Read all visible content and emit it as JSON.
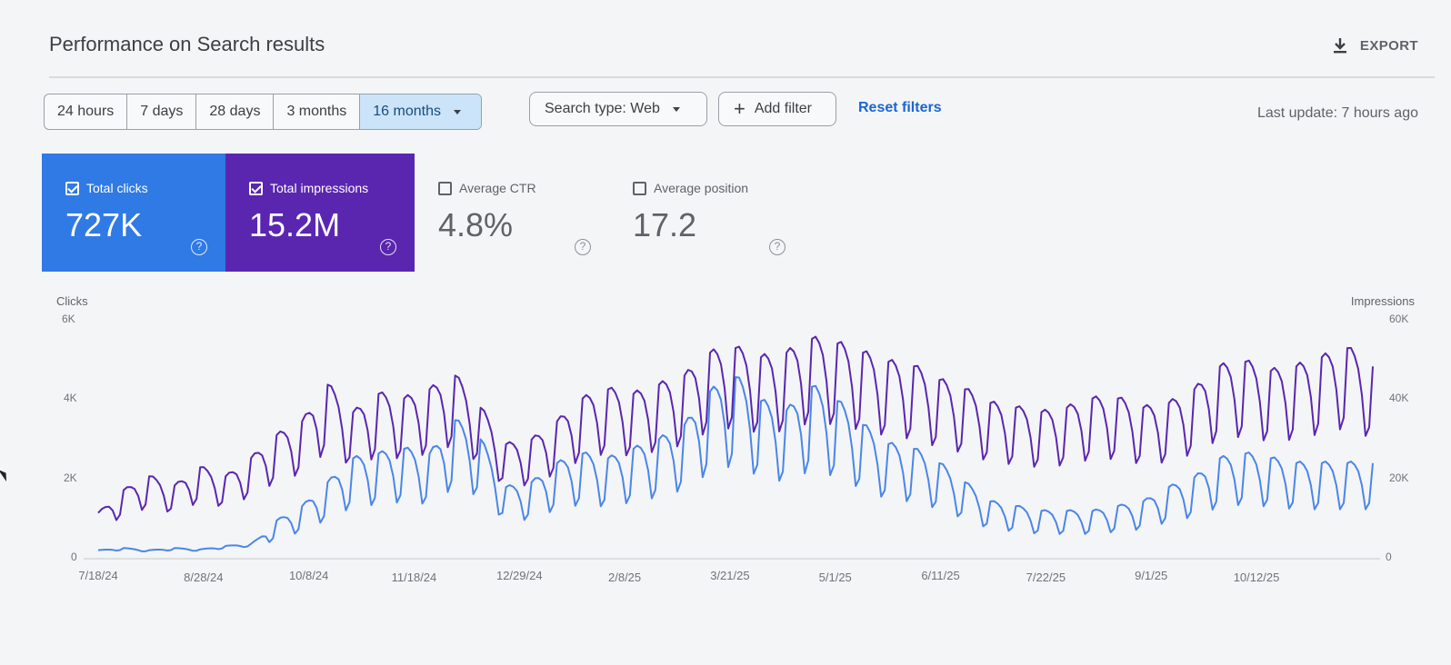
{
  "header": {
    "title": "Performance on Search results",
    "export_label": "EXPORT"
  },
  "date_range": {
    "options": [
      "24 hours",
      "7 days",
      "28 days",
      "3 months",
      "16 months"
    ],
    "selected": "16 months"
  },
  "filters": {
    "search_type": "Search type: Web",
    "add_filter": "Add filter",
    "reset": "Reset filters"
  },
  "last_update": "Last update: 7 hours ago",
  "metrics": {
    "clicks": {
      "label": "Total clicks",
      "value": "727K",
      "checked": true,
      "color": "#2f7ae5"
    },
    "impressions": {
      "label": "Total impressions",
      "value": "15.2M",
      "checked": true,
      "color": "#5a26b0"
    },
    "ctr": {
      "label": "Average CTR",
      "value": "4.8%",
      "checked": false
    },
    "position": {
      "label": "Average position",
      "value": "17.2",
      "checked": false
    }
  },
  "chart_data": {
    "type": "line",
    "left_axis": {
      "label": "Clicks",
      "ticks": [
        "0",
        "2K",
        "4K",
        "6K"
      ],
      "ylim": [
        0,
        6000
      ]
    },
    "right_axis": {
      "label": "Impressions",
      "ticks": [
        "0",
        "20K",
        "40K",
        "60K"
      ],
      "ylim": [
        0,
        60000
      ]
    },
    "x_ticks": [
      "7/18/24",
      "8/28/24",
      "10/8/24",
      "11/18/24",
      "12/29/24",
      "2/8/25",
      "3/21/25",
      "5/1/25",
      "6/11/25",
      "7/22/25",
      "9/1/25",
      "10/12/25"
    ],
    "series": [
      {
        "name": "Clicks",
        "color": "#4a86e8",
        "axis": "left",
        "weekly_values": [
          200,
          250,
          200,
          250,
          220,
          300,
          350,
          800,
          1100,
          1600,
          2100,
          2200,
          2300,
          2200,
          2900,
          2500,
          1500,
          1600,
          2000,
          2200,
          2100,
          2300,
          2500,
          2800,
          3500,
          3800,
          3300,
          3100,
          3600,
          3300,
          2800,
          2400,
          2300,
          2000,
          1600,
          1200,
          1100,
          1000,
          1000,
          1000,
          1100,
          1200,
          1500,
          1700,
          2100,
          2200,
          2100,
          2000,
          2000,
          2000,
          2000
        ]
      },
      {
        "name": "Impressions",
        "color": "#5a26b0",
        "axis": "right",
        "weekly_values": [
          10000,
          15000,
          18000,
          16000,
          20000,
          18000,
          22000,
          27000,
          30000,
          38000,
          32000,
          36000,
          35000,
          37000,
          40000,
          33000,
          25000,
          26000,
          30000,
          35000,
          37000,
          36000,
          38000,
          40000,
          45000,
          46000,
          44000,
          45000,
          48000,
          47000,
          45000,
          43000,
          42000,
          39000,
          37000,
          34000,
          33000,
          32000,
          33000,
          35000,
          35000,
          33000,
          34000,
          37000,
          42000,
          43000,
          41000,
          42000,
          44000,
          46000,
          42000
        ]
      }
    ]
  }
}
